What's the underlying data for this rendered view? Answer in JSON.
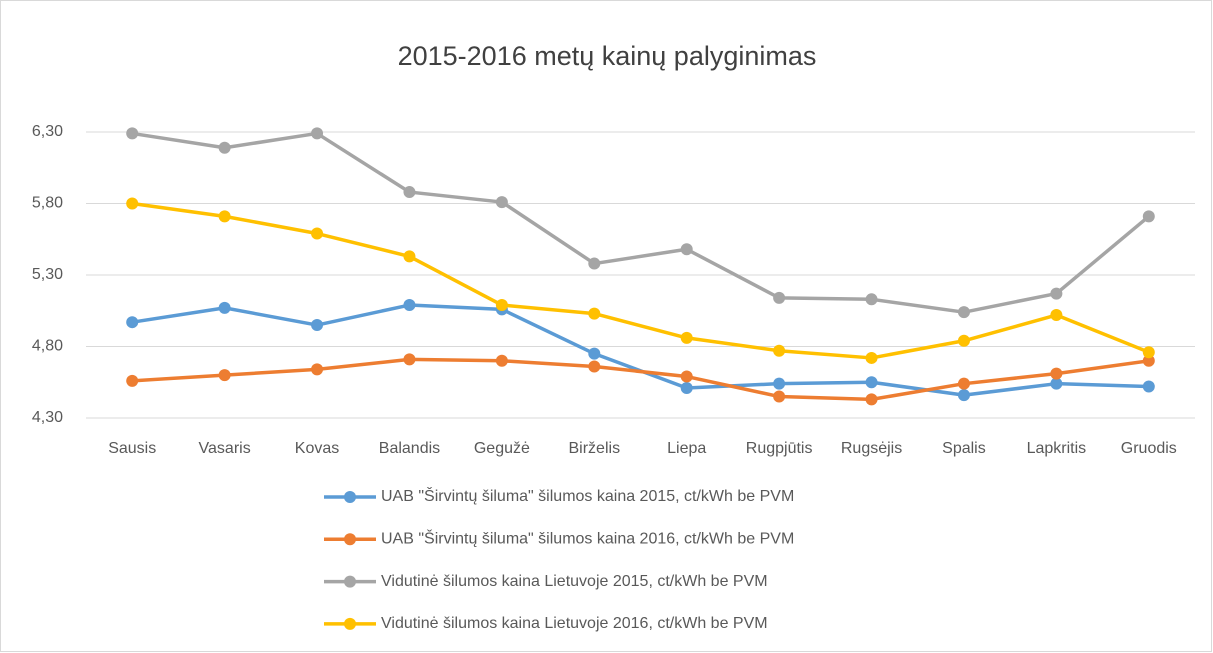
{
  "chart_data": {
    "type": "line",
    "title": "2015-2016 metų kainų palyginimas",
    "categories": [
      "Sausis",
      "Vasaris",
      "Kovas",
      "Balandis",
      "Gegužė",
      "Birželis",
      "Liepa",
      "Rugpjūtis",
      "Rugsėjis",
      "Spalis",
      "Lapkritis",
      "Gruodis"
    ],
    "series": [
      {
        "name": "UAB \"Širvintų šiluma\" šilumos kaina 2015, ct/kWh be PVM",
        "color": "#5b9bd5",
        "values": [
          4.97,
          5.07,
          4.95,
          5.09,
          5.06,
          4.75,
          4.51,
          4.54,
          4.55,
          4.46,
          4.54,
          4.52
        ]
      },
      {
        "name": "UAB \"Širvintų šiluma\" šilumos kaina 2016, ct/kWh be PVM",
        "color": "#ed7d31",
        "values": [
          4.56,
          4.6,
          4.64,
          4.71,
          4.7,
          4.66,
          4.59,
          4.45,
          4.43,
          4.54,
          4.61,
          4.7
        ]
      },
      {
        "name": "Vidutinė šilumos kaina Lietuvoje 2015, ct/kWh be PVM",
        "color": "#a5a5a5",
        "values": [
          6.29,
          6.19,
          6.29,
          5.88,
          5.81,
          5.38,
          5.48,
          5.14,
          5.13,
          5.04,
          5.17,
          5.71
        ]
      },
      {
        "name": "Vidutinė šilumos kaina Lietuvoje 2016, ct/kWh be PVM",
        "color": "#ffc000",
        "values": [
          5.8,
          5.71,
          5.59,
          5.43,
          5.09,
          5.03,
          4.86,
          4.77,
          4.72,
          4.84,
          5.02,
          4.76
        ]
      }
    ],
    "ylim": [
      4.3,
      6.3
    ],
    "yticks": [
      {
        "value": 4.3,
        "label": "4,30"
      },
      {
        "value": 4.8,
        "label": "4,80"
      },
      {
        "value": 5.3,
        "label": "5,30"
      },
      {
        "value": 5.8,
        "label": "5,80"
      },
      {
        "value": 6.3,
        "label": "6,30"
      }
    ],
    "grid": true,
    "legend": "bottom"
  }
}
